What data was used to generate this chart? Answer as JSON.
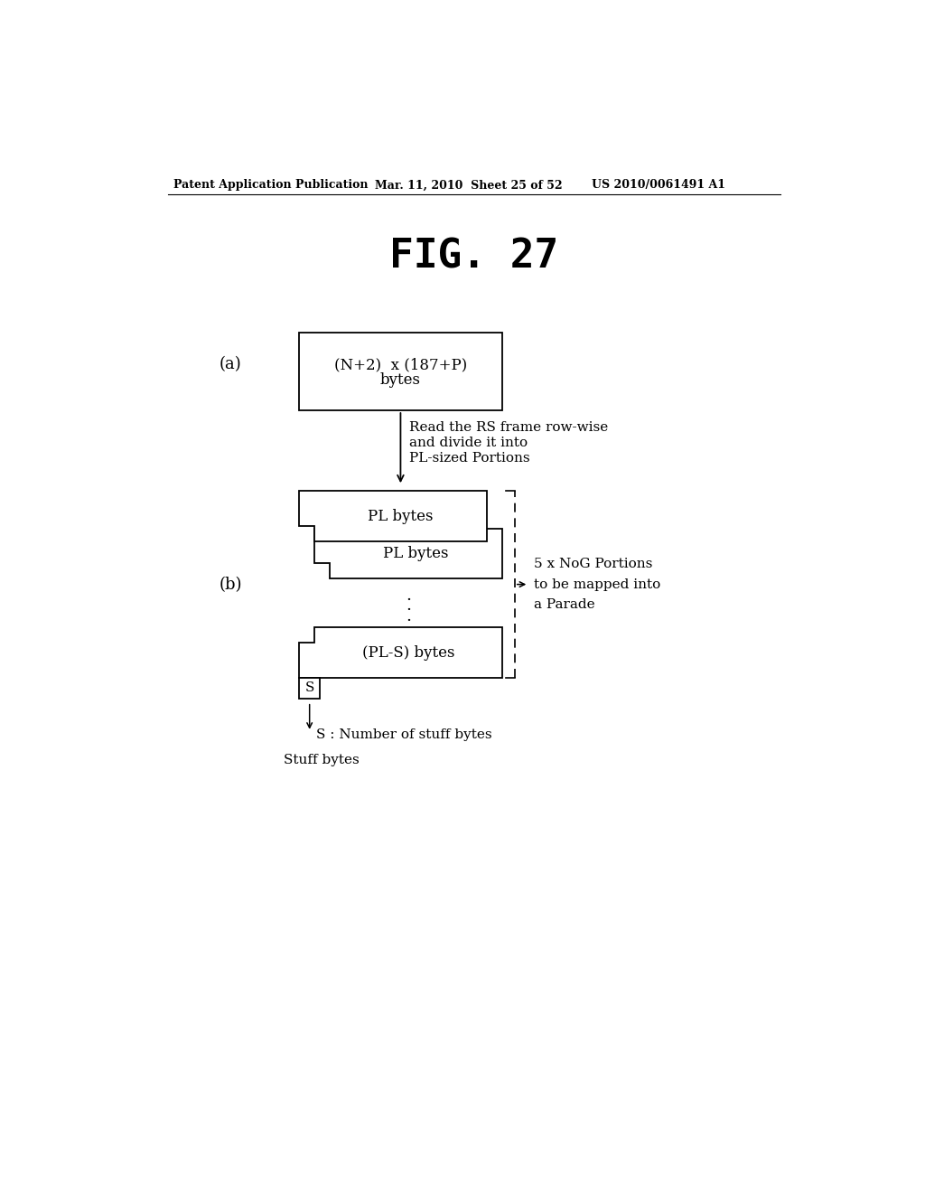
{
  "title": "FIG. 27",
  "header_left": "Patent Application Publication",
  "header_mid": "Mar. 11, 2010  Sheet 25 of 52",
  "header_right": "US 2010/0061491 A1",
  "bg_color": "#ffffff",
  "label_a": "(a)",
  "label_b": "(b)",
  "box_a_text_line1": "(N+2)  x (187+P)",
  "box_a_text_line2": "bytes",
  "arrow_text_line1": "Read the RS frame row-wise",
  "arrow_text_line2": "and divide it into",
  "arrow_text_line3": "PL-sized Portions",
  "box_b1_text": "PL bytes",
  "box_b2_text": "PL bytes",
  "dots": ":",
  "box_b3_text": "(PL-S) bytes",
  "box_s_text": "S",
  "brace_text_line1": "5 x NoG Portions",
  "brace_text_line2": "to be mapped into",
  "brace_text_line3": "a Parade",
  "arrow_s_text": "S : Number of stuff bytes",
  "stuff_text": "Stuff bytes"
}
